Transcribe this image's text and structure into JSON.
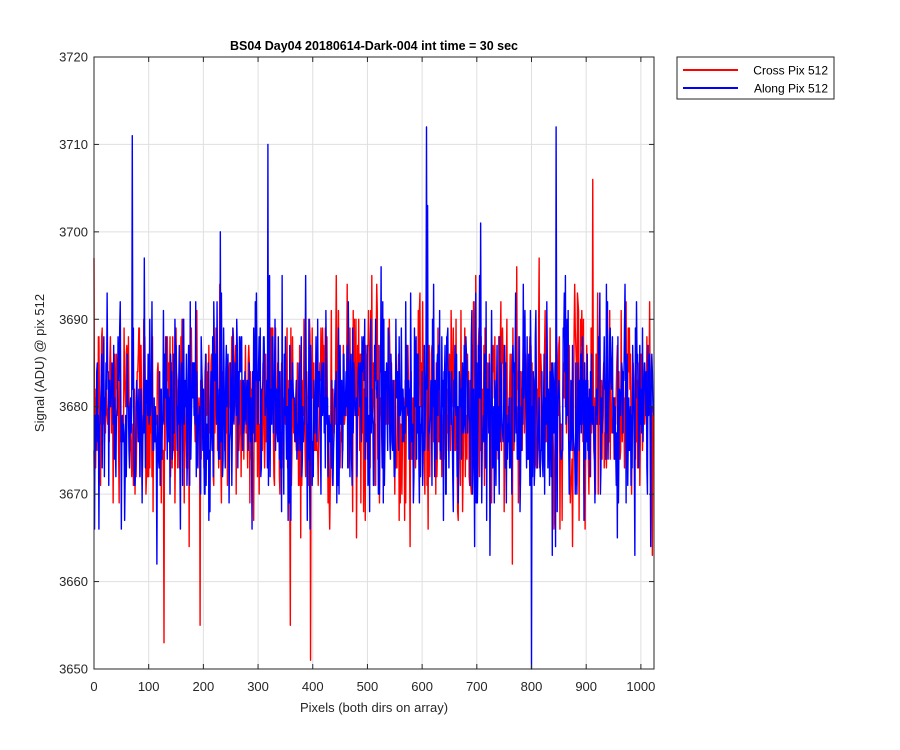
{
  "chart_data": {
    "type": "line",
    "title": "BS04 Day04 20180614-Dark-004 int time = 30 sec",
    "xlabel": "Pixels (both dirs on array)",
    "ylabel": "Signal (ADU) @ pix 512",
    "xlim": [
      0,
      1024
    ],
    "ylim": [
      3650,
      3720
    ],
    "xticks": [
      0,
      100,
      200,
      300,
      400,
      500,
      600,
      700,
      800,
      900,
      1000
    ],
    "yticks": [
      3650,
      3660,
      3670,
      3680,
      3690,
      3700,
      3710,
      3720
    ],
    "grid": true,
    "legend_position": "outside top-right",
    "series": [
      {
        "name": "Cross Pix 512",
        "color": "#ff0000",
        "n_points": 1024,
        "mean": 3680,
        "min": 3651,
        "max": 3706
      },
      {
        "name": "Along Pix 512",
        "color": "#0000ff",
        "n_points": 1024,
        "mean": 3680,
        "min": 3650,
        "max": 3712
      }
    ],
    "annotated_extremes": [
      {
        "series": "Along Pix 512",
        "x": 70,
        "y": 3711
      },
      {
        "series": "Along Pix 512",
        "x": 318,
        "y": 3710
      },
      {
        "series": "Along Pix 512",
        "x": 608,
        "y": 3712
      },
      {
        "series": "Along Pix 512",
        "x": 845,
        "y": 3712
      },
      {
        "series": "Along Pix 512",
        "x": 800,
        "y": 3650
      },
      {
        "series": "Cross Pix 512",
        "x": 396,
        "y": 3651
      },
      {
        "series": "Cross Pix 512",
        "x": 912,
        "y": 3706
      },
      {
        "series": "Cross Pix 512",
        "x": 128,
        "y": 3653
      }
    ]
  }
}
